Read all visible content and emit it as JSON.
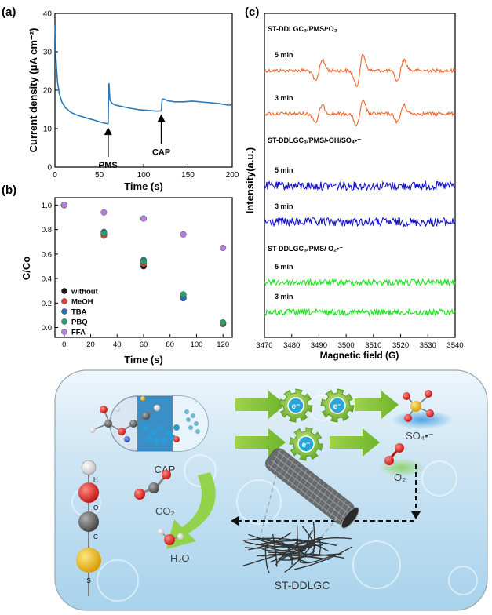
{
  "panel_labels": {
    "a": "(a)",
    "b": "(b)",
    "c": "(c)"
  },
  "chart_data": [
    {
      "panel": "(a)",
      "type": "line",
      "xlabel": "Time (s)",
      "ylabel": "Current density (μA cm⁻²)",
      "xlim": [
        0,
        200
      ],
      "ylim": [
        0,
        40
      ],
      "xticks": [
        "0",
        "50",
        "100",
        "150",
        "200"
      ],
      "yticks": [
        "0",
        "10",
        "20",
        "30",
        "40"
      ],
      "color": "#2979b8",
      "series": [
        {
          "x": [
            0,
            0.5,
            1,
            2,
            3,
            5,
            8,
            12,
            18,
            25,
            35,
            45,
            55,
            60,
            60.5,
            61,
            62,
            64,
            68,
            75,
            85,
            95,
            105,
            115,
            120,
            120.5,
            121,
            123,
            127,
            135,
            145,
            155,
            165,
            175,
            185,
            195,
            200
          ],
          "y": [
            37,
            34,
            29,
            25,
            22,
            19,
            16.8,
            15.3,
            14.3,
            13.6,
            12.8,
            12.1,
            11.5,
            11.2,
            19.5,
            21.8,
            17.5,
            16.6,
            16.1,
            15.7,
            15.3,
            15,
            14.7,
            14.5,
            14.6,
            16.5,
            17.8,
            17.6,
            17.2,
            17,
            16.9,
            17.2,
            17,
            16.7,
            16.5,
            16.2,
            16.1
          ]
        }
      ],
      "annotations": [
        {
          "text": "PMS",
          "x": 60,
          "y": 11.2
        },
        {
          "text": "CAP",
          "x": 120,
          "y": 14.6
        }
      ]
    },
    {
      "panel": "(b)",
      "type": "scatter",
      "xlabel": "Time (s)",
      "ylabel": "C/Co",
      "xlim": [
        -7,
        127
      ],
      "ylim": [
        -0.08,
        1.06
      ],
      "xticks": [
        "0",
        "20",
        "40",
        "60",
        "80",
        "100",
        "120"
      ],
      "yticks": [
        "0.0",
        "0.2",
        "0.4",
        "0.6",
        "0.8",
        "1.0"
      ],
      "legend_position": "lower-left",
      "x": [
        0,
        30,
        60,
        90,
        120
      ],
      "series": [
        {
          "name": "without",
          "color": "#1a1a1a",
          "values": [
            1.0,
            0.76,
            0.5,
            0.25,
            0.03
          ]
        },
        {
          "name": "MeOH",
          "color": "#e0403a",
          "values": [
            1.0,
            0.75,
            0.52,
            0.24,
            0.03
          ]
        },
        {
          "name": "TBA",
          "color": "#2b6fc2",
          "values": [
            1.0,
            0.78,
            0.55,
            0.24,
            0.04
          ]
        },
        {
          "name": "PBQ",
          "color": "#28a06a",
          "values": [
            1.0,
            0.77,
            0.54,
            0.27,
            0.04
          ]
        },
        {
          "name": "FFA",
          "color": "#b47ee0",
          "values": [
            1.0,
            0.94,
            0.89,
            0.76,
            0.65
          ]
        }
      ]
    },
    {
      "panel": "(c)",
      "type": "line",
      "xlabel": "Magnetic field (G)",
      "ylabel": "Intensity(a.u.)",
      "xlim": [
        3470,
        3540
      ],
      "xticks": [
        "3470",
        "3480",
        "3490",
        "3500",
        "3510",
        "3520",
        "3530",
        "3540"
      ],
      "groups": [
        {
          "title": "ST-DDLGC₃/PMS/¹O₂",
          "color": "#f0642c",
          "traces": [
            "5 min",
            "3 min"
          ],
          "peaks": [
            3490,
            3505,
            3520
          ],
          "peak_amp": [
            1.0,
            1.4
          ]
        },
        {
          "title": "ST-DDLGC₃/PMS/•OH/SO₄•⁻",
          "color": "#1414c8",
          "traces": [
            "5 min",
            "3 min"
          ]
        },
        {
          "title": "ST-DDLGC₃/PMS/ O₂•⁻",
          "color": "#22e022",
          "traces": [
            "5 min",
            "3 min"
          ]
        }
      ]
    }
  ],
  "schematic": {
    "labels": {
      "cap": "CAP",
      "electron": "e⁻",
      "so4": "SO₄•⁻",
      "o2": "O₂",
      "co2": "CO₂",
      "h2o": "H₂O",
      "catalyst": "ST-DDLGC"
    },
    "atom_legend": [
      "H",
      "O",
      "C",
      "S"
    ]
  }
}
